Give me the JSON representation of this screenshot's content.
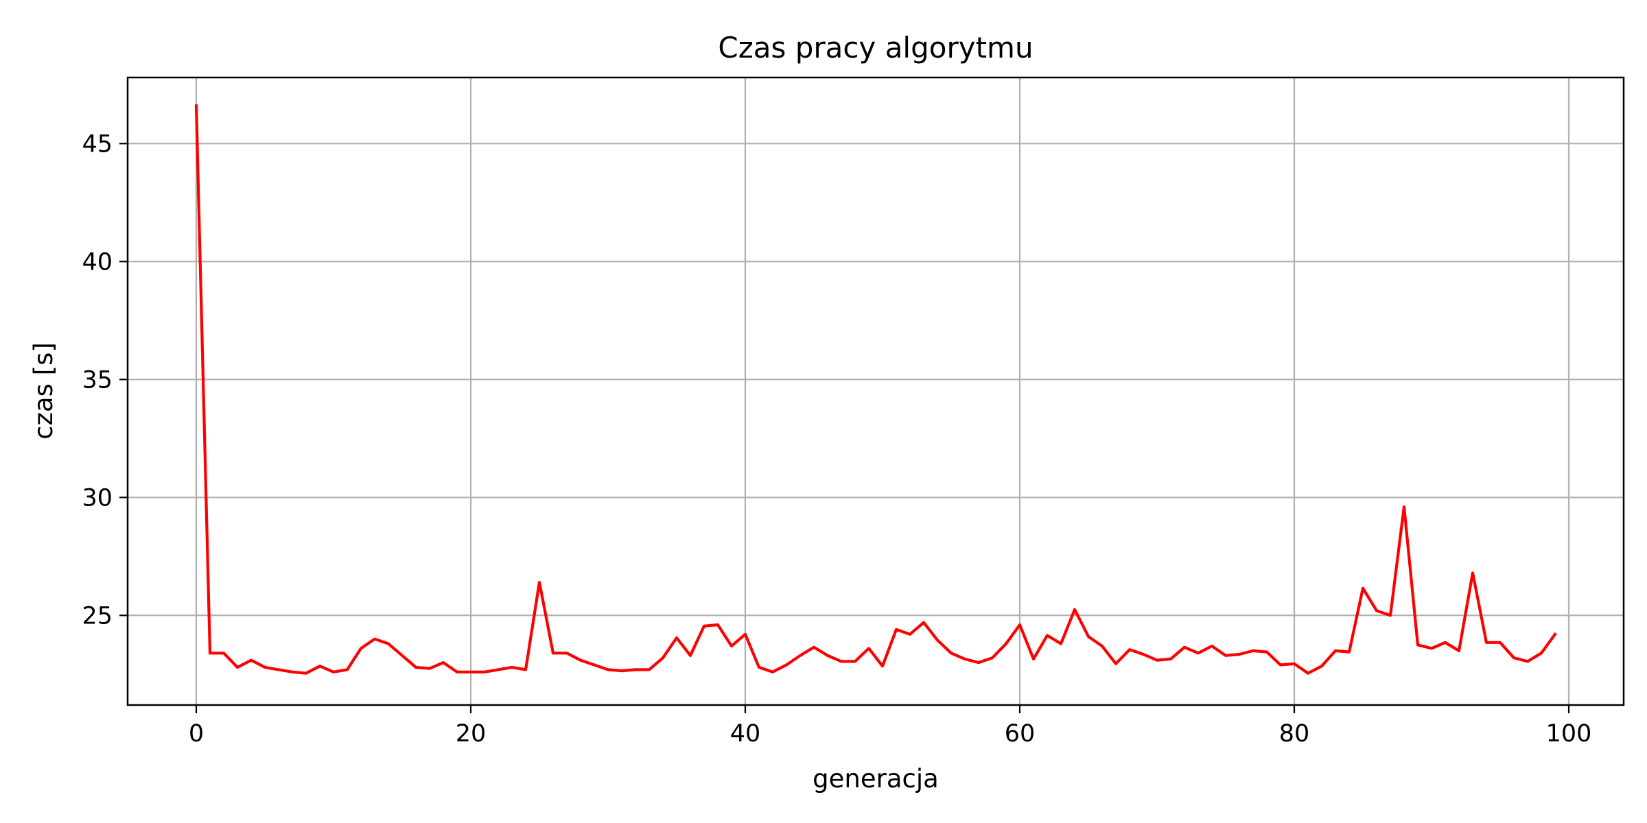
{
  "chart_data": {
    "type": "line",
    "title": "Czas pracy algorytmu",
    "xlabel": "generacja",
    "ylabel": "czas [s]",
    "xlim": [
      -5,
      104
    ],
    "ylim": [
      21.2,
      47.8
    ],
    "x_ticks": [
      0,
      20,
      40,
      60,
      80,
      100
    ],
    "y_ticks": [
      25,
      30,
      35,
      40,
      45
    ],
    "grid": true,
    "legend": "none",
    "series": [
      {
        "color": "#ff0000",
        "x": [
          0,
          1,
          2,
          3,
          4,
          5,
          6,
          7,
          8,
          9,
          10,
          11,
          12,
          13,
          14,
          15,
          16,
          17,
          18,
          19,
          20,
          21,
          22,
          23,
          24,
          25,
          26,
          27,
          28,
          29,
          30,
          31,
          32,
          33,
          34,
          35,
          36,
          37,
          38,
          39,
          40,
          41,
          42,
          43,
          44,
          45,
          46,
          47,
          48,
          49,
          50,
          51,
          52,
          53,
          54,
          55,
          56,
          57,
          58,
          59,
          60,
          61,
          62,
          63,
          64,
          65,
          66,
          67,
          68,
          69,
          70,
          71,
          72,
          73,
          74,
          75,
          76,
          77,
          78,
          79,
          80,
          81,
          82,
          83,
          84,
          85,
          86,
          87,
          88,
          89,
          90,
          91,
          92,
          93,
          94,
          95,
          96,
          97,
          98,
          99
        ],
        "values": [
          46.6,
          23.4,
          23.4,
          22.8,
          23.1,
          22.8,
          22.7,
          22.6,
          22.55,
          22.85,
          22.6,
          22.7,
          23.6,
          24.0,
          23.8,
          23.3,
          22.8,
          22.75,
          23.0,
          22.6,
          22.6,
          22.6,
          22.7,
          22.8,
          22.7,
          26.4,
          23.4,
          23.4,
          23.1,
          22.9,
          22.7,
          22.65,
          22.7,
          22.7,
          23.2,
          24.05,
          23.3,
          24.55,
          24.6,
          23.7,
          24.2,
          22.8,
          22.6,
          22.9,
          23.3,
          23.65,
          23.3,
          23.05,
          23.05,
          23.6,
          22.85,
          24.4,
          24.2,
          24.7,
          23.95,
          23.4,
          23.15,
          23.0,
          23.2,
          23.8,
          24.6,
          23.15,
          24.15,
          23.8,
          25.25,
          24.1,
          23.7,
          22.95,
          23.55,
          23.35,
          23.1,
          23.15,
          23.65,
          23.4,
          23.7,
          23.3,
          23.35,
          23.5,
          23.45,
          22.9,
          22.95,
          22.55,
          22.85,
          23.5,
          23.45,
          26.15,
          25.2,
          25.0,
          29.6,
          23.75,
          23.6,
          23.85,
          23.5,
          26.8,
          23.85,
          23.85,
          23.2,
          23.05,
          23.4,
          24.2
        ]
      }
    ]
  }
}
